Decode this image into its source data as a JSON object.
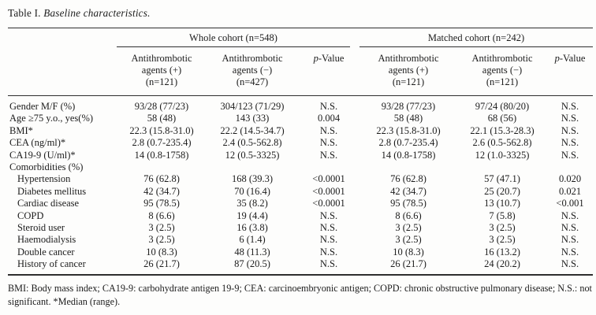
{
  "title": {
    "prefix": "Table I.",
    "italic": "Baseline characteristics."
  },
  "header": {
    "groups": [
      {
        "label": "Whole cohort (n=548)"
      },
      {
        "label": "Matched cohort (n=242)"
      }
    ],
    "columns": [
      {
        "lines": "Antithrombotic\nagents (+)\n(n=121)"
      },
      {
        "lines": "Antithrombotic\nagents (−)\n(n=427)"
      },
      {
        "p_italic": "p",
        "p_rest": "-Value"
      },
      {
        "lines": "Antithrombotic\nagents (+)\n(n=121)"
      },
      {
        "lines": "Antithrombotic\nagents (−)\n(n=121)"
      },
      {
        "p_italic": "p",
        "p_rest": "-Value"
      }
    ]
  },
  "rows": [
    {
      "label": "Gender M/F (%)",
      "indent": false,
      "section": false,
      "values": [
        "93/28 (77/23)",
        "304/123 (71/29)",
        "N.S.",
        "93/28 (77/23)",
        "97/24 (80/20)",
        "N.S."
      ]
    },
    {
      "label": "Age ≥75 y.o., yes(%)",
      "indent": false,
      "section": false,
      "values": [
        "58 (48)",
        "143 (33)",
        "0.004",
        "58 (48)",
        "68 (56)",
        "N.S."
      ]
    },
    {
      "label": "BMI*",
      "indent": false,
      "section": false,
      "values": [
        "22.3 (15.8-31.0)",
        "22.2 (14.5-34.7)",
        "N.S.",
        "22.3 (15.8-31.0)",
        "22.1 (15.3-28.3)",
        "N.S."
      ]
    },
    {
      "label": "CEA (ng/ml)*",
      "indent": false,
      "section": false,
      "values": [
        "2.8 (0.7-235.4)",
        "2.4 (0.5-562.8)",
        "N.S.",
        "2.8 (0.7-235.4)",
        "2.6 (0.5-562.8)",
        "N.S."
      ]
    },
    {
      "label": "CA19-9 (U/ml)*",
      "indent": false,
      "section": false,
      "values": [
        "14 (0.8-1758)",
        "12 (0.5-3325)",
        "N.S.",
        "14 (0.8-1758)",
        "12 (1.0-3325)",
        "N.S."
      ]
    },
    {
      "label": "Comorbidities (%)",
      "indent": false,
      "section": true,
      "values": [
        "",
        "",
        "",
        "",
        "",
        ""
      ]
    },
    {
      "label": "Hypertension",
      "indent": true,
      "section": false,
      "values": [
        "76 (62.8)",
        "168 (39.3)",
        "<0.0001",
        "76 (62.8)",
        "57 (47.1)",
        "0.020"
      ]
    },
    {
      "label": "Diabetes mellitus",
      "indent": true,
      "section": false,
      "values": [
        "42 (34.7)",
        "70 (16.4)",
        "<0.0001",
        "42 (34.7)",
        "25 (20.7)",
        "0.021"
      ]
    },
    {
      "label": "Cardiac disease",
      "indent": true,
      "section": false,
      "values": [
        "95 (78.5)",
        "35 (8.2)",
        "<0.0001",
        "95 (78.5)",
        "13 (10.7)",
        "<0.001"
      ]
    },
    {
      "label": "COPD",
      "indent": true,
      "section": false,
      "values": [
        "8 (6.6)",
        "19 (4.4)",
        "N.S.",
        "8 (6.6)",
        "7 (5.8)",
        "N.S."
      ]
    },
    {
      "label": "Steroid user",
      "indent": true,
      "section": false,
      "values": [
        "3 (2.5)",
        "16 (3.8)",
        "N.S.",
        "3 (2.5)",
        "3 (2.5)",
        "N.S."
      ]
    },
    {
      "label": "Haemodialysis",
      "indent": true,
      "section": false,
      "values": [
        "3 (2.5)",
        "6 (1.4)",
        "N.S.",
        "3 (2.5)",
        "3 (2.5)",
        "N.S."
      ]
    },
    {
      "label": "Double cancer",
      "indent": true,
      "section": false,
      "values": [
        "10 (8.3)",
        "48 (11.3)",
        "N.S.",
        "10 (8.3)",
        "16 (13.2)",
        "N.S."
      ]
    },
    {
      "label": "History of cancer",
      "indent": true,
      "section": false,
      "values": [
        "26 (21.7)",
        "87 (20.5)",
        "N.S.",
        "26 (21.7)",
        "24 (20.2)",
        "N.S."
      ]
    }
  ],
  "footnote": "BMI: Body mass index; CA19-9: carbohydrate antigen 19-9; CEA: carcinoembryonic antigen; COPD: chronic obstructive pulmonary disease; N.S.: not significant. *Median (range)."
}
